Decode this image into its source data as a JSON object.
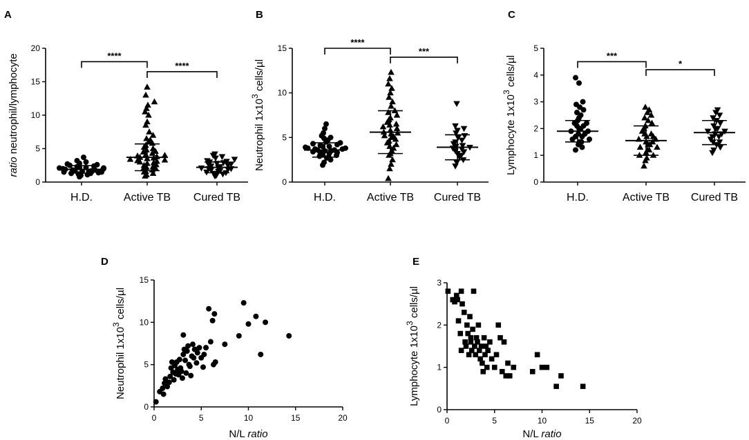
{
  "chart_data": [
    {
      "id": "A",
      "type": "scatter",
      "panel_label": "A",
      "ylabel_italic": "ratio",
      "ylabel_rest": " neutrophil/lymphocyte",
      "ylim": [
        0,
        20
      ],
      "yticks": [
        0,
        5,
        10,
        15,
        20
      ],
      "categories": [
        "H.D.",
        "Active TB",
        "Cured TB"
      ],
      "markers": [
        "circle",
        "triangle",
        "inv-triangle"
      ],
      "groups": [
        {
          "name": "H.D.",
          "mean": 1.9,
          "sd": 0.55,
          "values": [
            0.8,
            1.0,
            1.1,
            1.2,
            1.3,
            1.3,
            1.4,
            1.5,
            1.5,
            1.6,
            1.6,
            1.7,
            1.7,
            1.8,
            1.8,
            1.9,
            1.9,
            2.0,
            2.0,
            2.1,
            2.1,
            2.2,
            2.2,
            2.3,
            2.4,
            2.5,
            2.6,
            2.7,
            2.8,
            3.0,
            3.2,
            3.7
          ]
        },
        {
          "name": "Active TB",
          "mean": 3.7,
          "sd": 2.0,
          "values": [
            0.9,
            1.1,
            1.3,
            1.5,
            1.6,
            1.8,
            2.0,
            2.1,
            2.2,
            2.3,
            2.5,
            2.6,
            2.8,
            2.9,
            3.0,
            3.1,
            3.2,
            3.3,
            3.4,
            3.5,
            3.6,
            3.7,
            3.8,
            3.9,
            4.0,
            4.1,
            4.3,
            4.5,
            4.6,
            4.8,
            5.0,
            5.2,
            5.5,
            5.8,
            6.0,
            6.3,
            6.5,
            7.0,
            7.5,
            8.5,
            9.0,
            10.0,
            10.5,
            11.0,
            11.5,
            12.0,
            13.0,
            14.2
          ]
        },
        {
          "name": "Cured TB",
          "mean": 2.2,
          "sd": 0.8,
          "values": [
            0.9,
            1.0,
            1.2,
            1.3,
            1.4,
            1.5,
            1.6,
            1.7,
            1.8,
            1.9,
            2.0,
            2.0,
            2.1,
            2.2,
            2.3,
            2.4,
            2.5,
            2.6,
            2.7,
            2.8,
            2.9,
            3.0,
            3.1,
            3.2,
            3.4,
            3.6,
            3.8,
            4.0,
            4.2
          ]
        }
      ],
      "comparisons": [
        {
          "from": 0,
          "to": 1,
          "label": "****",
          "y": 18.0
        },
        {
          "from": 1,
          "to": 2,
          "label": "****",
          "y": 16.5
        }
      ]
    },
    {
      "id": "B",
      "type": "scatter",
      "panel_label": "B",
      "ylabel_main": "Neutrophil 1x10",
      "ylabel_sup": "3",
      "ylabel_tail": " cells/µl",
      "ylim": [
        0,
        15
      ],
      "yticks": [
        0,
        5,
        10,
        15
      ],
      "categories": [
        "H.D.",
        "Active TB",
        "Cured TB"
      ],
      "markers": [
        "circle",
        "triangle",
        "inv-triangle"
      ],
      "groups": [
        {
          "name": "H.D.",
          "mean": 3.6,
          "sd": 0.8,
          "values": [
            1.9,
            2.2,
            2.5,
            2.7,
            2.8,
            2.9,
            3.0,
            3.1,
            3.2,
            3.3,
            3.3,
            3.4,
            3.5,
            3.5,
            3.6,
            3.6,
            3.7,
            3.7,
            3.8,
            3.8,
            3.9,
            4.0,
            4.0,
            4.1,
            4.2,
            4.3,
            4.4,
            4.5,
            4.7,
            4.9,
            5.0,
            5.2,
            5.5,
            6.0,
            6.5
          ]
        },
        {
          "name": "Active TB",
          "mean": 5.6,
          "sd": 2.4,
          "values": [
            0.4,
            1.5,
            2.0,
            2.5,
            3.0,
            3.2,
            3.5,
            3.8,
            4.0,
            4.2,
            4.4,
            4.6,
            4.8,
            5.0,
            5.1,
            5.2,
            5.4,
            5.5,
            5.6,
            5.8,
            6.0,
            6.2,
            6.4,
            6.5,
            6.7,
            7.0,
            7.2,
            7.5,
            7.8,
            8.0,
            8.5,
            9.0,
            9.5,
            10.0,
            10.5,
            11.0,
            11.6,
            12.3
          ]
        },
        {
          "name": "Cured TB",
          "mean": 3.9,
          "sd": 1.4,
          "values": [
            1.8,
            2.2,
            2.5,
            2.8,
            3.0,
            3.2,
            3.4,
            3.5,
            3.7,
            3.8,
            3.9,
            4.0,
            4.1,
            4.3,
            4.5,
            4.7,
            5.0,
            5.2,
            5.5,
            5.8,
            6.0,
            6.3,
            8.8
          ]
        }
      ],
      "comparisons": [
        {
          "from": 0,
          "to": 1,
          "label": "****",
          "y": 15.0
        },
        {
          "from": 1,
          "to": 2,
          "label": "***",
          "y": 14.0
        }
      ]
    },
    {
      "id": "C",
      "type": "scatter",
      "panel_label": "C",
      "ylabel_main": "Lymphocyte 1x10",
      "ylabel_sup": "3",
      "ylabel_tail": " cells/µl",
      "ylim": [
        0,
        5
      ],
      "yticks": [
        0,
        1,
        2,
        3,
        4,
        5
      ],
      "categories": [
        "H.D.",
        "Active TB",
        "Cured TB"
      ],
      "markers": [
        "circle",
        "triangle",
        "inv-triangle"
      ],
      "groups": [
        {
          "name": "H.D.",
          "mean": 1.9,
          "sd": 0.4,
          "values": [
            1.2,
            1.3,
            1.4,
            1.5,
            1.5,
            1.6,
            1.6,
            1.7,
            1.7,
            1.8,
            1.8,
            1.9,
            1.9,
            2.0,
            2.0,
            2.1,
            2.1,
            2.2,
            2.2,
            2.3,
            2.4,
            2.5,
            2.6,
            2.7,
            2.8,
            2.9,
            3.0,
            3.7,
            3.9
          ]
        },
        {
          "name": "Active TB",
          "mean": 1.55,
          "sd": 0.55,
          "values": [
            0.6,
            0.8,
            0.9,
            1.0,
            1.0,
            1.1,
            1.2,
            1.2,
            1.3,
            1.3,
            1.4,
            1.4,
            1.5,
            1.5,
            1.6,
            1.6,
            1.7,
            1.7,
            1.8,
            1.8,
            1.9,
            2.0,
            2.1,
            2.2,
            2.3,
            2.4,
            2.5,
            2.6,
            2.7,
            2.8
          ]
        },
        {
          "name": "Cured TB",
          "mean": 1.85,
          "sd": 0.45,
          "values": [
            1.1,
            1.2,
            1.3,
            1.4,
            1.5,
            1.5,
            1.6,
            1.7,
            1.7,
            1.8,
            1.8,
            1.9,
            1.9,
            2.0,
            2.0,
            2.1,
            2.2,
            2.3,
            2.4,
            2.5,
            2.6,
            2.7
          ]
        }
      ],
      "comparisons": [
        {
          "from": 0,
          "to": 1,
          "label": "***",
          "y": 4.5
        },
        {
          "from": 1,
          "to": 2,
          "label": "*",
          "y": 4.2
        }
      ]
    },
    {
      "id": "D",
      "type": "scatter",
      "panel_label": "D",
      "marker": "circle",
      "xlabel_main": "N/L ",
      "xlabel_italic": "ratio",
      "ylabel_main": "Neutrophil 1x10",
      "ylabel_sup": "3",
      "ylabel_tail": " cells/µl",
      "xlim": [
        0,
        20
      ],
      "xticks": [
        0,
        5,
        10,
        15,
        20
      ],
      "ylim": [
        0,
        15
      ],
      "yticks": [
        0,
        5,
        10,
        15
      ],
      "points": [
        [
          0.2,
          0.6
        ],
        [
          0.6,
          1.8
        ],
        [
          0.9,
          2.2
        ],
        [
          1.0,
          1.5
        ],
        [
          1.1,
          2.8
        ],
        [
          1.2,
          3.3
        ],
        [
          1.4,
          2.4
        ],
        [
          1.6,
          2.9
        ],
        [
          1.7,
          3.6
        ],
        [
          1.8,
          4.6
        ],
        [
          1.9,
          5.3
        ],
        [
          2.0,
          4.1
        ],
        [
          2.1,
          3.2
        ],
        [
          2.2,
          4.9
        ],
        [
          2.3,
          3.9
        ],
        [
          2.4,
          5.3
        ],
        [
          2.5,
          4.4
        ],
        [
          2.6,
          3.8
        ],
        [
          2.7,
          5.6
        ],
        [
          2.8,
          4.6
        ],
        [
          2.9,
          4.2
        ],
        [
          3.0,
          3.4
        ],
        [
          3.1,
          6.2
        ],
        [
          3.2,
          6.8
        ],
        [
          3.3,
          5.5
        ],
        [
          3.4,
          4.0
        ],
        [
          3.5,
          6.6
        ],
        [
          3.6,
          7.2
        ],
        [
          3.7,
          5.0
        ],
        [
          3.8,
          4.8
        ],
        [
          3.9,
          3.7
        ],
        [
          4.0,
          6.0
        ],
        [
          4.1,
          7.4
        ],
        [
          4.2,
          5.8
        ],
        [
          4.3,
          6.8
        ],
        [
          4.5,
          5.2
        ],
        [
          4.6,
          6.4
        ],
        [
          4.8,
          7.0
        ],
        [
          5.0,
          5.8
        ],
        [
          5.2,
          4.7
        ],
        [
          5.3,
          6.2
        ],
        [
          5.5,
          7.0
        ],
        [
          5.8,
          11.6
        ],
        [
          6.0,
          7.7
        ],
        [
          6.2,
          10.2
        ],
        [
          6.3,
          5.0
        ],
        [
          6.4,
          11.0
        ],
        [
          6.5,
          5.3
        ],
        [
          7.5,
          7.4
        ],
        [
          9.0,
          8.4
        ],
        [
          9.5,
          12.3
        ],
        [
          10.0,
          9.8
        ],
        [
          10.8,
          10.7
        ],
        [
          11.3,
          6.2
        ],
        [
          11.8,
          10.0
        ],
        [
          14.3,
          8.4
        ],
        [
          3.1,
          8.5
        ],
        [
          4.4,
          6.8
        ]
      ]
    },
    {
      "id": "E",
      "type": "scatter",
      "panel_label": "E",
      "marker": "square",
      "xlabel_main": "N/L ",
      "xlabel_italic": "ratio",
      "ylabel_main": "Lymphocyte 1x10",
      "ylabel_sup": "3",
      "ylabel_tail": " cells/µl",
      "xlim": [
        0,
        20
      ],
      "xticks": [
        0,
        5,
        10,
        15,
        20
      ],
      "ylim": [
        0,
        3
      ],
      "yticks": [
        0,
        1,
        2,
        3
      ],
      "points": [
        [
          0.1,
          2.8
        ],
        [
          0.6,
          2.6
        ],
        [
          0.8,
          2.55
        ],
        [
          1.0,
          2.7
        ],
        [
          1.1,
          2.6
        ],
        [
          1.2,
          2.1
        ],
        [
          1.4,
          1.8
        ],
        [
          1.5,
          2.8
        ],
        [
          1.6,
          2.5
        ],
        [
          1.8,
          2.3
        ],
        [
          1.9,
          1.6
        ],
        [
          2.0,
          1.5
        ],
        [
          2.1,
          2.0
        ],
        [
          2.2,
          1.8
        ],
        [
          2.3,
          1.3
        ],
        [
          2.4,
          2.2
        ],
        [
          2.5,
          1.6
        ],
        [
          2.6,
          1.4
        ],
        [
          2.7,
          1.9
        ],
        [
          2.8,
          2.8
        ],
        [
          2.9,
          1.5
        ],
        [
          3.0,
          1.3
        ],
        [
          3.1,
          1.7
        ],
        [
          3.2,
          1.6
        ],
        [
          3.3,
          2.0
        ],
        [
          3.4,
          1.4
        ],
        [
          3.5,
          1.2
        ],
        [
          3.6,
          1.5
        ],
        [
          3.7,
          1.1
        ],
        [
          3.8,
          0.9
        ],
        [
          3.9,
          1.7
        ],
        [
          4.0,
          1.3
        ],
        [
          4.1,
          1.5
        ],
        [
          4.2,
          1.0
        ],
        [
          4.3,
          1.4
        ],
        [
          4.5,
          1.6
        ],
        [
          4.7,
          1.2
        ],
        [
          5.0,
          1.0
        ],
        [
          5.2,
          1.3
        ],
        [
          5.4,
          2.0
        ],
        [
          5.6,
          1.7
        ],
        [
          5.8,
          0.9
        ],
        [
          6.0,
          1.6
        ],
        [
          6.2,
          0.8
        ],
        [
          6.4,
          1.1
        ],
        [
          6.6,
          0.8
        ],
        [
          7.0,
          1.0
        ],
        [
          9.0,
          0.9
        ],
        [
          9.5,
          1.3
        ],
        [
          10.0,
          1.0
        ],
        [
          10.5,
          1.0
        ],
        [
          11.5,
          0.55
        ],
        [
          12.0,
          0.8
        ],
        [
          14.3,
          0.55
        ],
        [
          1.5,
          1.4
        ],
        [
          2.5,
          1.7
        ]
      ]
    }
  ]
}
